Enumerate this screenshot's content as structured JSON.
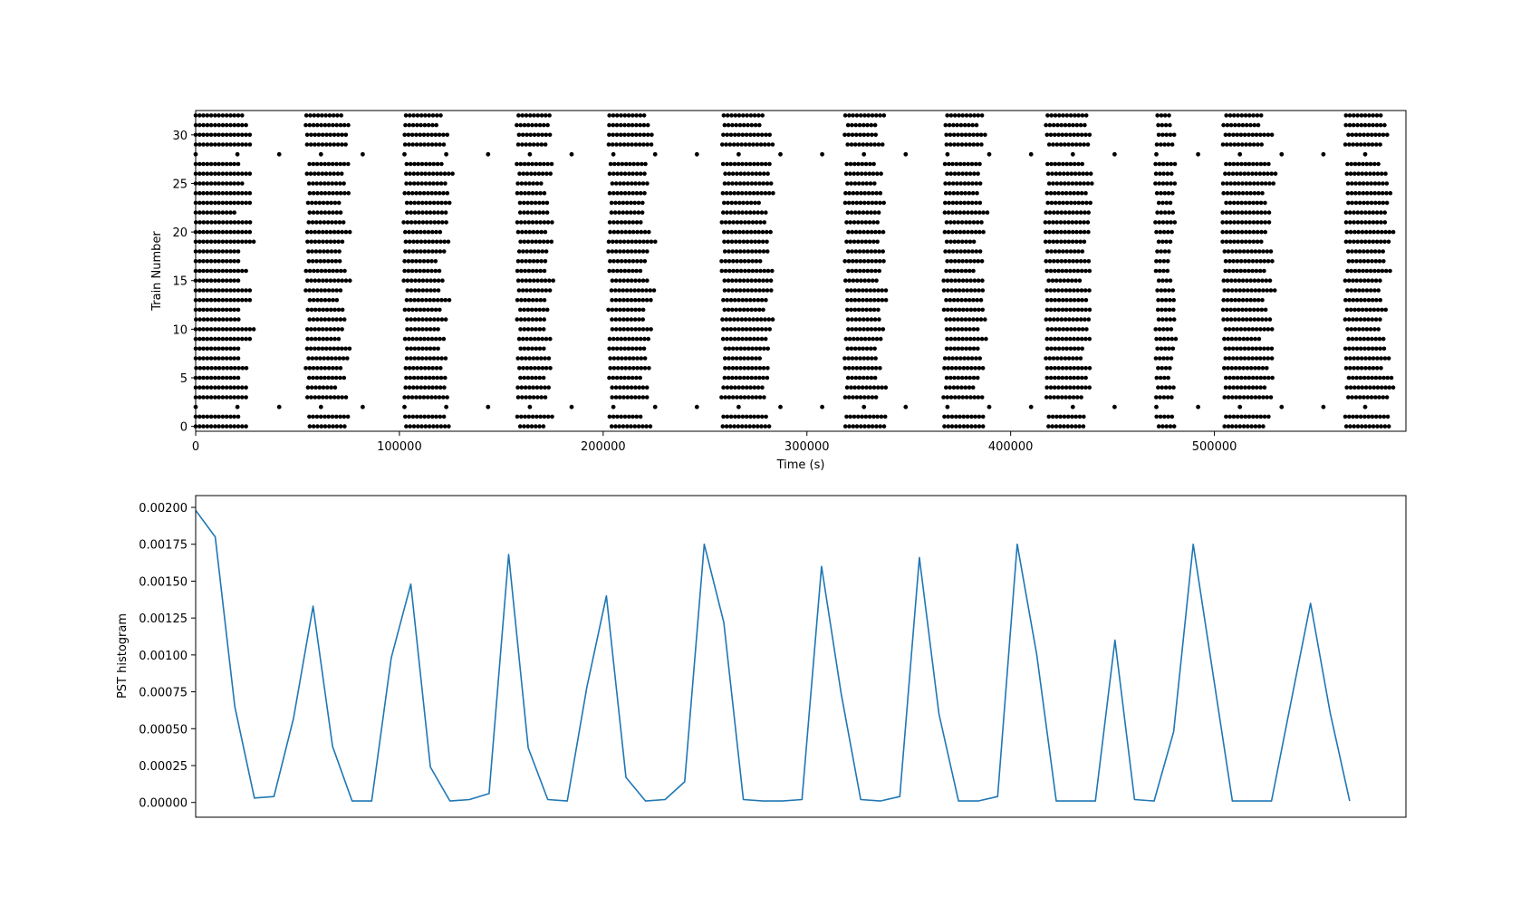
{
  "chart_data": [
    {
      "type": "scatter",
      "xlabel": "Time (s)",
      "ylabel": "Train Number",
      "xlim": [
        0,
        594000
      ],
      "ylim": [
        -0.5,
        32.5
      ],
      "x_ticks": [
        0,
        100000,
        200000,
        300000,
        400000,
        500000
      ],
      "x_tick_labels": [
        "0",
        "100000",
        "200000",
        "300000",
        "400000",
        "500000"
      ],
      "y_ticks": [
        0,
        5,
        10,
        15,
        20,
        25,
        30
      ],
      "y_tick_labels": [
        "0",
        "5",
        "10",
        "15",
        "20",
        "25",
        "30"
      ],
      "marker_color": "#000000",
      "num_trains": 33,
      "bursts": [
        {
          "center": 12000,
          "width": 25000
        },
        {
          "center": 64000,
          "width": 18000
        },
        {
          "center": 113000,
          "width": 20000
        },
        {
          "center": 166000,
          "width": 15000
        },
        {
          "center": 213000,
          "width": 19000
        },
        {
          "center": 270000,
          "width": 22000
        },
        {
          "center": 328000,
          "width": 17000
        },
        {
          "center": 377000,
          "width": 18000
        },
        {
          "center": 428000,
          "width": 20000
        },
        {
          "center": 476000,
          "width": 8000
        },
        {
          "center": 516000,
          "width": 22000
        },
        {
          "center": 575000,
          "width": 20000
        }
      ],
      "regular_trains": [
        {
          "train": 2,
          "start": 0,
          "interval": 20500
        },
        {
          "train": 28,
          "start": 0,
          "interval": 20500
        }
      ]
    },
    {
      "type": "line",
      "xlabel": "",
      "ylabel": "PST histogram",
      "ylim": [
        -0.0001,
        0.00208
      ],
      "y_ticks": [
        0,
        0.00025,
        0.0005,
        0.00075,
        0.001,
        0.00125,
        0.0015,
        0.00175,
        0.002
      ],
      "y_tick_labels": [
        "0.00000",
        "0.00025",
        "0.00050",
        "0.00075",
        "0.00100",
        "0.00125",
        "0.00150",
        "0.00175",
        "0.00200"
      ],
      "line_color": "#1f77b4",
      "x": [
        0,
        9600,
        19200,
        28800,
        38400,
        48000,
        57600,
        67200,
        76800,
        86400,
        96000,
        105600,
        115200,
        124800,
        134400,
        144000,
        153600,
        163200,
        172800,
        182400,
        192000,
        201600,
        211200,
        220800,
        230400,
        240000,
        249600,
        259200,
        268800,
        278400,
        288000,
        297600,
        307200,
        316800,
        326400,
        336000,
        345600,
        355200,
        364800,
        374400,
        384000,
        393600,
        403200,
        412800,
        422400,
        432000,
        441600,
        451200,
        460800,
        470400,
        480000,
        489600,
        499200,
        508800,
        518400,
        528000,
        537600,
        547200,
        556800,
        566400
      ],
      "values": [
        0.00198,
        0.0018,
        0.00065,
        3e-05,
        4e-05,
        0.00057,
        0.00133,
        0.00038,
        1e-05,
        1e-05,
        0.00098,
        0.00148,
        0.00024,
        1e-05,
        2e-05,
        6e-05,
        0.00168,
        0.00037,
        2e-05,
        1e-05,
        0.00078,
        0.0014,
        0.00017,
        1e-05,
        2e-05,
        0.00014,
        0.00175,
        0.00122,
        2e-05,
        1e-05,
        1e-05,
        2e-05,
        0.0016,
        0.00074,
        2e-05,
        1e-05,
        4e-05,
        0.00166,
        0.0006,
        1e-05,
        1e-05,
        4e-05,
        0.00175,
        0.001,
        1e-05,
        1e-05,
        1e-05,
        0.0011,
        2e-05,
        1e-05,
        0.00048,
        0.00175,
        0.00088,
        1e-05,
        1e-05,
        1e-05,
        0.00068,
        0.00135,
        0.00061,
        1e-05
      ]
    }
  ]
}
